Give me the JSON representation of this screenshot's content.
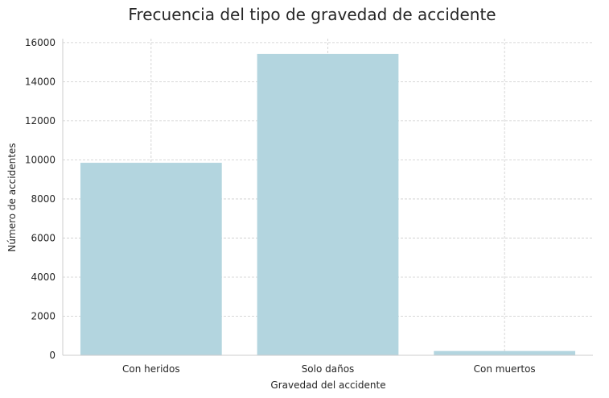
{
  "chart_data": {
    "type": "bar",
    "title": "Frecuencia del tipo de gravedad de accidente",
    "xlabel": "Gravedad del accidente",
    "ylabel": "Número de accidentes",
    "categories": [
      "Con heridos",
      "Solo daños",
      "Con muertos"
    ],
    "values": [
      9850,
      15420,
      220
    ],
    "ylim": [
      0,
      16200
    ],
    "yticks": [
      0,
      2000,
      4000,
      6000,
      8000,
      10000,
      12000,
      14000,
      16000
    ],
    "grid": true,
    "bar_color": "#b3d5df"
  }
}
